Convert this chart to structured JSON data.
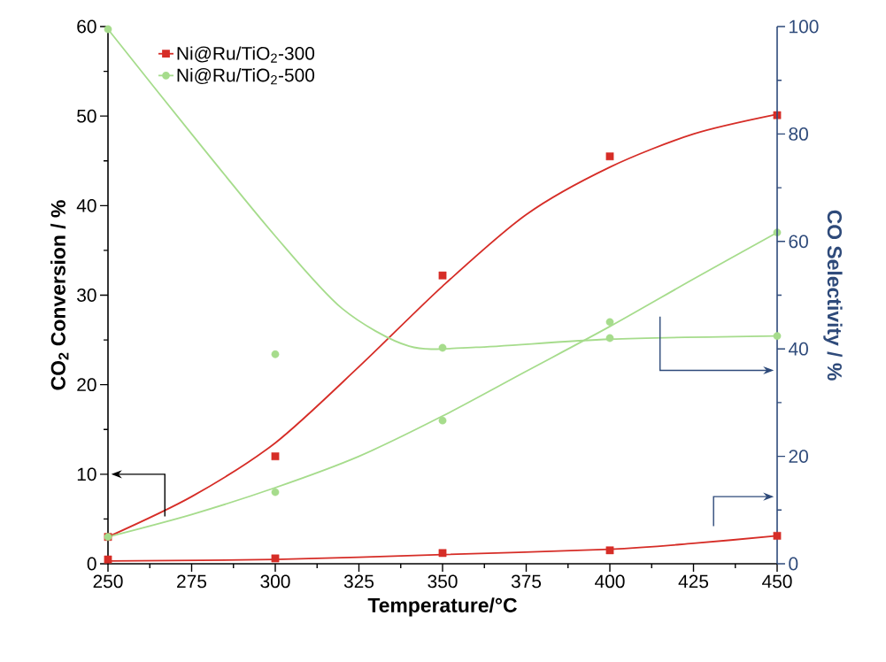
{
  "chart_data": {
    "type": "scatter",
    "xlabel": "Temperature/°C",
    "ylabel": "CO$_{2}$ Conversion / %",
    "y2label": "CO Selectivity / %",
    "xlim": [
      250,
      450
    ],
    "xticks": [
      250,
      275,
      300,
      325,
      350,
      375,
      400,
      425,
      450
    ],
    "ylim": [
      0,
      60
    ],
    "yticks": [
      0,
      10,
      20,
      30,
      40,
      50,
      60
    ],
    "y2lim": [
      0,
      100
    ],
    "y2ticks": [
      0,
      20,
      40,
      60,
      80,
      100
    ],
    "legend": "top left",
    "grid": false,
    "series": [
      {
        "name": "Ni@Ru/TiO$_{2}$-300",
        "marker": "square",
        "color": "#d62d27",
        "axis": "y",
        "x": [
          250,
          300,
          350,
          400,
          450
        ],
        "values": [
          3,
          12,
          32.2,
          45.5,
          50.1
        ]
      },
      {
        "name": "Ni@Ru/TiO$_{2}$-500",
        "marker": "circle",
        "color": "#a6dc8c",
        "axis": "y",
        "x": [
          250,
          300,
          350,
          400,
          450
        ],
        "values": [
          3,
          8,
          16,
          27,
          37
        ]
      },
      {
        "marker": "square",
        "color": "#d62d27",
        "axis": "y2",
        "x": [
          250,
          300,
          350,
          400,
          450
        ],
        "values": [
          0.8,
          1,
          2,
          2.5,
          5.2
        ]
      },
      {
        "marker": "circle",
        "color": "#a6dc8c",
        "axis": "y2",
        "x": [
          250,
          300,
          350,
          400,
          450
        ],
        "values": [
          99.5,
          39,
          40.2,
          42,
          42.4
        ]
      },
      {
        "type": "line",
        "marker": "none",
        "color": "#d62d27",
        "axis": "y",
        "x": [
          250,
          275,
          300,
          325,
          350,
          375,
          400,
          425,
          450
        ],
        "values": [
          3,
          7.5,
          13.5,
          22,
          31,
          39,
          44.3,
          48,
          50.2
        ]
      },
      {
        "type": "line",
        "marker": "none",
        "color": "#a6dc8c",
        "axis": "y",
        "x": [
          250,
          275,
          300,
          325,
          350,
          375,
          400,
          425,
          450
        ],
        "values": [
          3,
          5.5,
          8.5,
          12,
          16.5,
          21.5,
          26.5,
          31.8,
          37
        ]
      },
      {
        "type": "line",
        "marker": "none",
        "color": "#d62d27",
        "axis": "y2",
        "x": [
          250,
          300,
          350,
          400,
          425,
          450
        ],
        "values": [
          0.5,
          0.8,
          1.7,
          2.7,
          3.8,
          5.2
        ]
      },
      {
        "type": "line",
        "marker": "none",
        "color": "#a6dc8c",
        "axis": "y2",
        "x": [
          250,
          275,
          300,
          320,
          340,
          360,
          400,
          450
        ],
        "values": [
          99.5,
          80,
          61,
          47.5,
          40.5,
          40.3,
          41.8,
          42.4
        ]
      }
    ]
  }
}
